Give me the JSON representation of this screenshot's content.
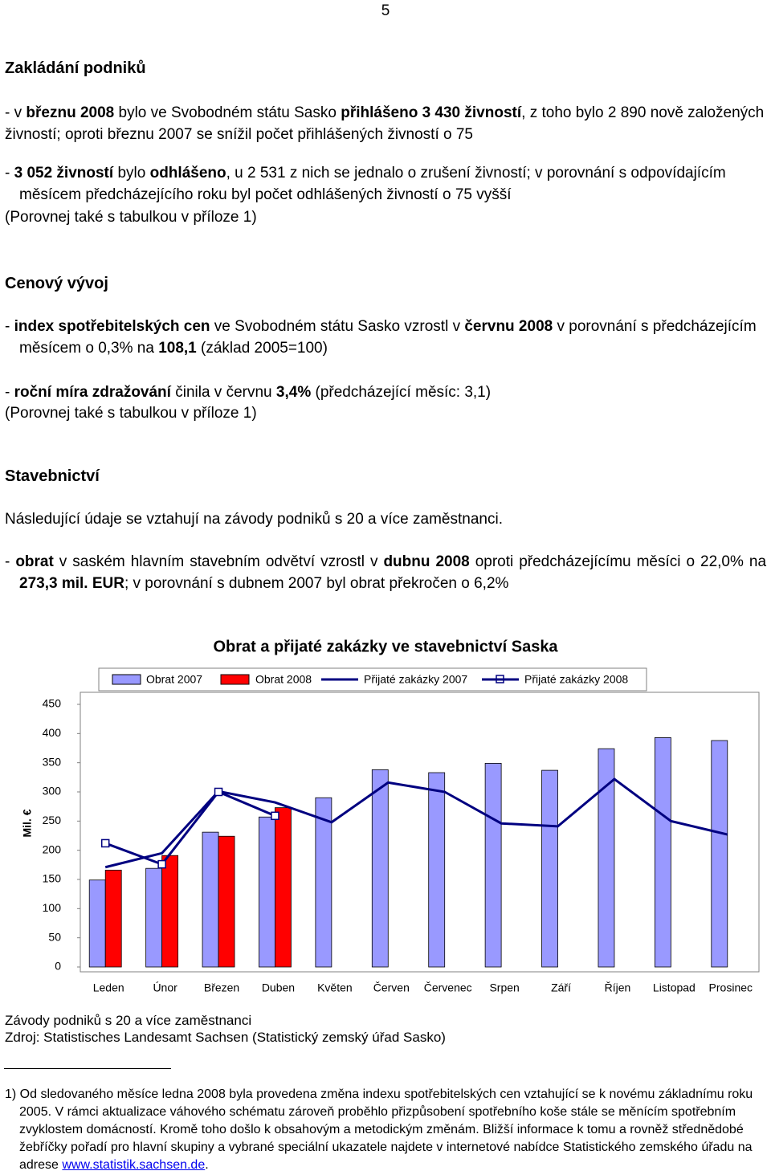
{
  "page_number": "5",
  "sections": [
    {
      "heading": "Zakládání podniků",
      "paragraphs": [
        [
          {
            "text": "- v "
          },
          {
            "text": "březnu 2008",
            "bold": true
          },
          {
            "text": " bylo ve Svobodném státu Sasko "
          },
          {
            "text": "přihlášeno 3 430 živností",
            "bold": true
          },
          {
            "text": ", z toho bylo 2 890 nově založených živností; oproti březnu 2007 se snížil počet přihlášených živností o 75"
          }
        ],
        [
          {
            "text": "- "
          },
          {
            "text": "3 052 živností",
            "bold": true
          },
          {
            "text": " bylo "
          },
          {
            "text": "odhlášeno",
            "bold": true
          },
          {
            "text": ", u 2 531 z nich se jednalo o zrušení živností; v porovnání s odpovídajícím měsícem předcházejícího roku byl počet odhlášených živností o 75 vyšší"
          }
        ],
        [
          {
            "text": "(Porovnej také s tabulkou v příloze 1)"
          }
        ]
      ]
    },
    {
      "heading": "Cenový vývoj",
      "paragraphs": [
        [
          {
            "text": "- "
          },
          {
            "text": "index spotřebitelských cen",
            "bold": true
          },
          {
            "text": " ve Svobodném státu Sasko vzrostl v "
          },
          {
            "text": "červnu 2008",
            "bold": true
          },
          {
            "text": " v porovnání s předcházejícím měsícem o 0,3% na "
          },
          {
            "text": "108,1",
            "bold": true
          },
          {
            "text": " (základ 2005=100)"
          }
        ],
        [
          {
            "text": "- "
          },
          {
            "text": "roční míra zdražování",
            "bold": true
          },
          {
            "text": " činila v červnu "
          },
          {
            "text": "3,4%",
            "bold": true
          },
          {
            "text": " (předcházející měsíc: 3,1)"
          }
        ],
        [
          {
            "text": "(Porovnej také s tabulkou v příloze 1)"
          }
        ]
      ]
    },
    {
      "heading": "Stavebnictví",
      "paragraphs": [
        [
          {
            "text": "Následující údaje se vztahují na závody podniků s 20 a více zaměstnanci."
          }
        ],
        [
          {
            "text": "- "
          },
          {
            "text": "obrat",
            "bold": true
          },
          {
            "text": " v saském hlavním stavebním odvětví vzrostl v "
          },
          {
            "text": "dubnu 2008",
            "bold": true
          },
          {
            "text": " oproti předcházejícímu měsíci o 22,0% na "
          },
          {
            "text": "273,3 mil. EUR",
            "bold": true
          },
          {
            "text": "; v porovnání s dubnem 2007 byl obrat překročen o 6,2%"
          }
        ]
      ]
    }
  ],
  "chart_data": {
    "type": "combo",
    "title": "Obrat a přijaté zakázky ve stavebnictví Saska",
    "y_label": "Mil. €",
    "categories": [
      "Leden",
      "Únor",
      "Březen",
      "Duben",
      "Květen",
      "Červen",
      "Červenec",
      "Srpen",
      "Září",
      "Říjen",
      "Listopad",
      "Prosinec"
    ],
    "series": [
      {
        "name": "Obrat 2007",
        "kind": "bar",
        "color": "#9999ff",
        "values": [
          149,
          169,
          231,
          257,
          290,
          338,
          333,
          349,
          337,
          374,
          393,
          388
        ]
      },
      {
        "name": "Obrat 2008",
        "kind": "bar",
        "color": "#ff0000",
        "values": [
          166,
          191,
          224,
          273,
          null,
          null,
          null,
          null,
          null,
          null,
          null,
          null
        ]
      },
      {
        "name": "Přijaté zakázky 2007",
        "kind": "line",
        "color": "#000080",
        "values": [
          171,
          195,
          301,
          282,
          248,
          316,
          300,
          246,
          241,
          322,
          250,
          227
        ]
      },
      {
        "name": "Přijaté zakázky 2008",
        "kind": "line",
        "marker": "square",
        "color": "#000080",
        "values": [
          212,
          176,
          300,
          259,
          null,
          null,
          null,
          null,
          null,
          null,
          null,
          null
        ]
      }
    ],
    "ylim": [
      0,
      450
    ],
    "yticks": [
      0,
      50,
      100,
      150,
      200,
      250,
      300,
      350,
      400,
      450
    ]
  },
  "notes": [
    "Závody podniků s 20 a více zaměstnanci",
    "Zdroj: Statistisches Landesamt Sachsen (Statistický zemský úřad Sasko)"
  ],
  "footnote": [
    {
      "text": "1) Od sledovaného měsíce ledna 2008 byla provedena změna indexu spotřebitelských cen vztahující se k novému základnímu roku 2005. V rámci aktualizace váhového schématu zároveň proběhlo přizpůsobení spotřebního koše stále se měnícím spotřebním zvyklostem domácností. Kromě toho došlo k obsahovým a metodickým změnám. Bližší informace k tomu a rovněž střednědobé žebříčky pořadí pro hlavní skupiny a vybrané speciální ukazatele najdete v internetové nabídce Statistického zemského úřadu na adrese "
    },
    {
      "text": "www.statistik.sachsen.de",
      "link": true
    },
    {
      "text": "."
    }
  ]
}
